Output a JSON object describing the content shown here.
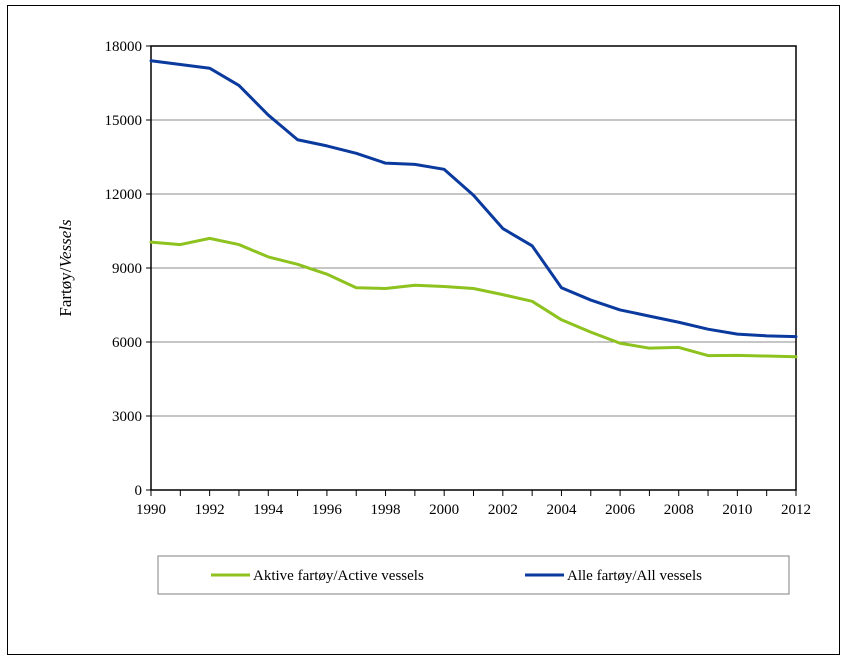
{
  "chart_data": {
    "type": "line",
    "title": "",
    "xlabel": "",
    "ylabel": {
      "prefix": "Fartøy/",
      "suffix": "Vessels"
    },
    "xlim": [
      1990,
      2012
    ],
    "ylim": [
      0,
      18000
    ],
    "x_ticks": [
      1990,
      1992,
      1994,
      1996,
      1998,
      2000,
      2002,
      2004,
      2006,
      2008,
      2010,
      2012
    ],
    "y_ticks": [
      0,
      3000,
      6000,
      9000,
      12000,
      15000,
      18000
    ],
    "grid": "horizontal",
    "legend_position": "bottom",
    "x": [
      1990,
      1991,
      1992,
      1993,
      1994,
      1995,
      1996,
      1997,
      1998,
      1999,
      2000,
      2001,
      2002,
      2003,
      2004,
      2005,
      2006,
      2007,
      2008,
      2009,
      2010,
      2011,
      2012
    ],
    "series": [
      {
        "name": "Aktive fartøy/Active vessels",
        "color": "#8DC21F",
        "values": [
          10050,
          9950,
          10200,
          9950,
          9450,
          9150,
          8750,
          8200,
          8170,
          8300,
          8250,
          8170,
          7920,
          7650,
          6900,
          6400,
          5950,
          5750,
          5780,
          5450,
          5460,
          5430,
          5400
        ]
      },
      {
        "name": "Alle fartøy/All vessels",
        "color": "#0A3A9E",
        "values": [
          17400,
          17250,
          17100,
          16400,
          15200,
          14200,
          13950,
          13650,
          13250,
          13200,
          13000,
          11950,
          10600,
          9900,
          8200,
          7700,
          7300,
          7050,
          6800,
          6520,
          6320,
          6250,
          6220
        ]
      }
    ]
  }
}
